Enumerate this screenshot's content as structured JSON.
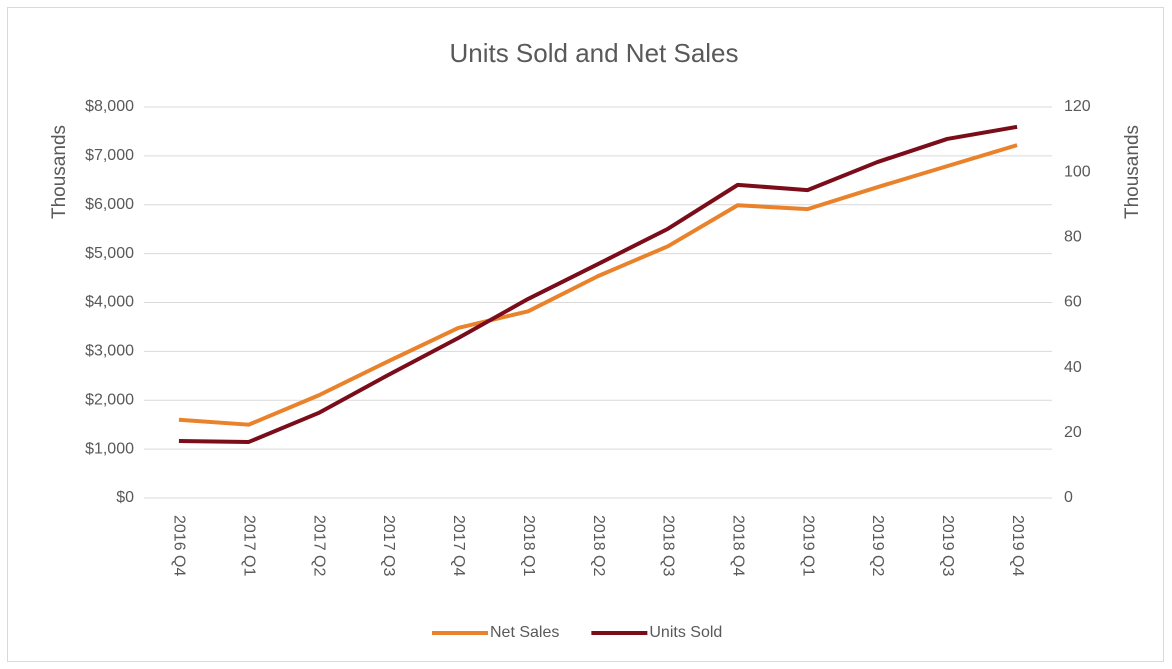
{
  "chart_data": {
    "type": "line",
    "title": "Units Sold and Net Sales",
    "ylabel": "Thousands",
    "y2label": "Thousands",
    "categories": [
      "2016 Q4",
      "2017 Q1",
      "2017 Q2",
      "2017 Q3",
      "2017 Q4",
      "2018 Q1",
      "2018 Q2",
      "2018 Q3",
      "2018 Q4",
      "2019 Q1",
      "2019 Q2",
      "2019 Q3",
      "2019 Q4"
    ],
    "series": [
      {
        "name": "Net Sales",
        "color": "#e9822a",
        "values": [
          1600,
          1500,
          2100,
          2800,
          3480,
          3820,
          4540,
          5150,
          5990,
          5910,
          6360,
          6790,
          7220
        ]
      },
      {
        "name": "Units Sold",
        "color": "#7b0c1a",
        "axis": "y2",
        "values": [
          17.5,
          17.2,
          26.1,
          37.8,
          49.1,
          61.1,
          71.8,
          82.6,
          96.1,
          94.5,
          103.1,
          110.2,
          113.9
        ]
      }
    ],
    "ylim": [
      0,
      8000
    ],
    "yticks": [
      {
        "value": 0,
        "label": "$0"
      },
      {
        "value": 1000,
        "label": "$1,000"
      },
      {
        "value": 2000,
        "label": "$2,000"
      },
      {
        "value": 3000,
        "label": "$3,000"
      },
      {
        "value": 4000,
        "label": "$4,000"
      },
      {
        "value": 5000,
        "label": "$5,000"
      },
      {
        "value": 6000,
        "label": "$6,000"
      },
      {
        "value": 7000,
        "label": "$7,000"
      },
      {
        "value": 8000,
        "label": "$8,000"
      }
    ],
    "y2lim": [
      0,
      120
    ],
    "y2ticks": [
      0,
      20,
      40,
      60,
      80,
      100,
      120
    ],
    "grid": true,
    "legend": "bottom"
  }
}
